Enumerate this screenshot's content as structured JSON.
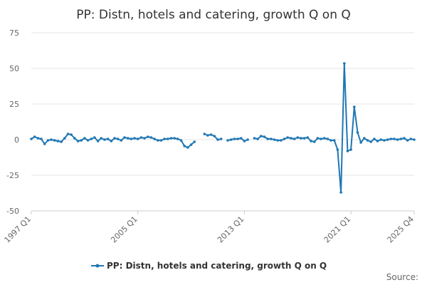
{
  "chart_data": {
    "type": "line",
    "title": "PP: Distn, hotels and catering, growth Q on Q",
    "xlabel": "",
    "ylabel": "",
    "ylim": [
      -50,
      75
    ],
    "yticks": [
      75,
      50,
      25,
      0,
      -25,
      -50
    ],
    "ytick_labels": [
      "75",
      "50",
      "25",
      "0",
      "-25",
      "-50"
    ],
    "xlim": [
      "1997 Q1",
      "2025 Q4"
    ],
    "xticks": [
      "1997 Q1",
      "2005 Q1",
      "2013 Q1",
      "2021 Q1",
      "2025 Q4"
    ],
    "grid": "horizontal",
    "legend_position": "bottom",
    "color": "#1f77b4",
    "series": [
      {
        "name": "PP: Distn, hotels and catering, growth Q on Q",
        "points": [
          [
            "1997 Q1",
            0.5
          ],
          [
            "1997 Q2",
            2.0
          ],
          [
            "1997 Q3",
            1.0
          ],
          [
            "1997 Q4",
            0.5
          ],
          [
            "1998 Q1",
            -3.0
          ],
          [
            "1998 Q2",
            -0.5
          ],
          [
            "1998 Q3",
            0.0
          ],
          [
            "1998 Q4",
            -0.5
          ],
          [
            "1999 Q1",
            -1.0
          ],
          [
            "1999 Q2",
            -1.5
          ],
          [
            "1999 Q3",
            1.0
          ],
          [
            "1999 Q4",
            4.0
          ],
          [
            "2000 Q1",
            3.5
          ],
          [
            "2000 Q2",
            1.0
          ],
          [
            "2000 Q3",
            -1.0
          ],
          [
            "2000 Q4",
            -0.5
          ],
          [
            "2001 Q1",
            1.0
          ],
          [
            "2001 Q2",
            -0.5
          ],
          [
            "2001 Q3",
            0.5
          ],
          [
            "2001 Q4",
            1.5
          ],
          [
            "2002 Q1",
            -1.0
          ],
          [
            "2002 Q2",
            1.0
          ],
          [
            "2002 Q3",
            0.0
          ],
          [
            "2002 Q4",
            0.5
          ],
          [
            "2003 Q1",
            -1.0
          ],
          [
            "2003 Q2",
            1.0
          ],
          [
            "2003 Q3",
            0.5
          ],
          [
            "2003 Q4",
            -0.5
          ],
          [
            "2004 Q1",
            1.5
          ],
          [
            "2004 Q2",
            1.0
          ],
          [
            "2004 Q3",
            0.5
          ],
          [
            "2004 Q4",
            1.0
          ],
          [
            "2005 Q1",
            0.5
          ],
          [
            "2005 Q2",
            1.5
          ],
          [
            "2005 Q3",
            1.0
          ],
          [
            "2005 Q4",
            2.0
          ],
          [
            "2006 Q1",
            1.5
          ],
          [
            "2006 Q2",
            0.5
          ],
          [
            "2006 Q3",
            -0.5
          ],
          [
            "2006 Q4",
            -0.5
          ],
          [
            "2007 Q1",
            0.5
          ],
          [
            "2007 Q2",
            0.5
          ],
          [
            "2007 Q3",
            1.0
          ],
          [
            "2007 Q4",
            1.0
          ],
          [
            "2008 Q1",
            0.5
          ],
          [
            "2008 Q2",
            -0.5
          ],
          [
            "2008 Q3",
            -4.5
          ],
          [
            "2008 Q4",
            -5.5
          ],
          [
            "2009 Q1",
            -3.5
          ],
          [
            "2009 Q2",
            -1.5
          ],
          [
            "2009 Q3",
            null
          ],
          [
            "2009 Q4",
            null
          ],
          [
            "2010 Q1",
            4.0
          ],
          [
            "2010 Q2",
            3.0
          ],
          [
            "2010 Q3",
            3.5
          ],
          [
            "2010 Q4",
            2.5
          ],
          [
            "2011 Q1",
            0.0
          ],
          [
            "2011 Q2",
            0.5
          ],
          [
            "2011 Q3",
            null
          ],
          [
            "2011 Q4",
            -0.5
          ],
          [
            "2012 Q1",
            0.0
          ],
          [
            "2012 Q2",
            0.5
          ],
          [
            "2012 Q3",
            0.5
          ],
          [
            "2012 Q4",
            1.0
          ],
          [
            "2013 Q1",
            -1.0
          ],
          [
            "2013 Q2",
            0.0
          ],
          [
            "2013 Q3",
            null
          ],
          [
            "2013 Q4",
            1.0
          ],
          [
            "2014 Q1",
            0.5
          ],
          [
            "2014 Q2",
            2.5
          ],
          [
            "2014 Q3",
            2.0
          ],
          [
            "2014 Q4",
            0.5
          ],
          [
            "2015 Q1",
            0.5
          ],
          [
            "2015 Q2",
            0.0
          ],
          [
            "2015 Q3",
            -0.5
          ],
          [
            "2015 Q4",
            -0.5
          ],
          [
            "2016 Q1",
            0.5
          ],
          [
            "2016 Q2",
            1.5
          ],
          [
            "2016 Q3",
            1.0
          ],
          [
            "2016 Q4",
            0.5
          ],
          [
            "2017 Q1",
            1.5
          ],
          [
            "2017 Q2",
            1.0
          ],
          [
            "2017 Q3",
            1.0
          ],
          [
            "2017 Q4",
            1.5
          ],
          [
            "2018 Q1",
            -1.0
          ],
          [
            "2018 Q2",
            -1.5
          ],
          [
            "2018 Q3",
            1.0
          ],
          [
            "2018 Q4",
            0.5
          ],
          [
            "2019 Q1",
            1.0
          ],
          [
            "2019 Q2",
            0.5
          ],
          [
            "2019 Q3",
            -0.5
          ],
          [
            "2019 Q4",
            -0.5
          ],
          [
            "2020 Q1",
            -7.0
          ],
          [
            "2020 Q2",
            -37.0
          ],
          [
            "2020 Q3",
            53.5
          ],
          [
            "2020 Q4",
            -8.0
          ],
          [
            "2021 Q1",
            -7.0
          ],
          [
            "2021 Q2",
            23.0
          ],
          [
            "2021 Q3",
            5.0
          ],
          [
            "2021 Q4",
            -2.0
          ],
          [
            "2022 Q1",
            1.0
          ],
          [
            "2022 Q2",
            -0.5
          ],
          [
            "2022 Q3",
            -1.5
          ],
          [
            "2022 Q4",
            0.5
          ],
          [
            "2023 Q1",
            -1.0
          ],
          [
            "2023 Q2",
            0.0
          ],
          [
            "2023 Q3",
            -0.5
          ],
          [
            "2023 Q4",
            0.0
          ],
          [
            "2024 Q1",
            0.5
          ],
          [
            "2024 Q2",
            0.5
          ],
          [
            "2024 Q3",
            0.0
          ],
          [
            "2024 Q4",
            0.5
          ],
          [
            "2025 Q1",
            1.0
          ],
          [
            "2025 Q2",
            -0.5
          ],
          [
            "2025 Q3",
            0.5
          ],
          [
            "2025 Q4",
            0.0
          ]
        ]
      }
    ],
    "legend": {
      "label": "PP: Distn, hotels and catering, growth Q on Q"
    },
    "source": "Source:"
  }
}
